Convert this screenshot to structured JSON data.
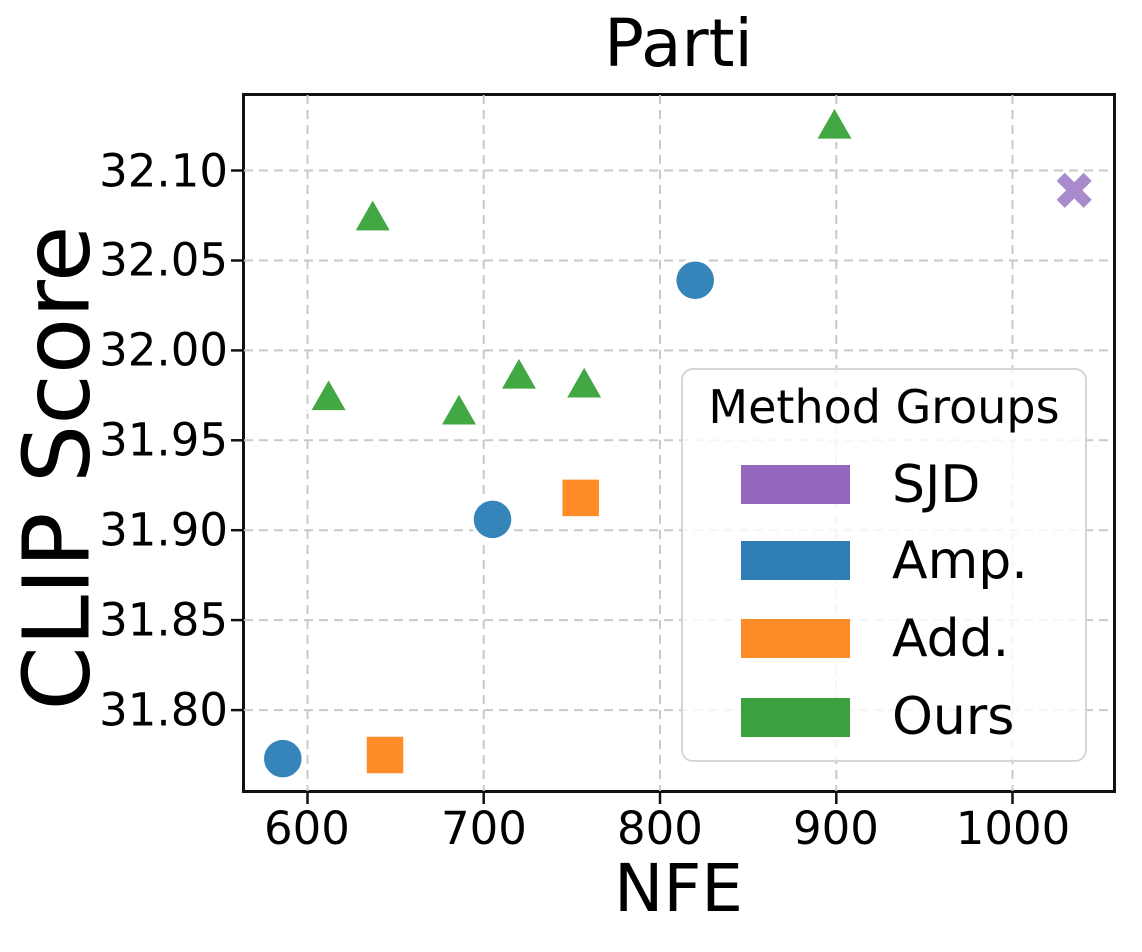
{
  "figure": {
    "title": "Parti",
    "xlabel": "NFE",
    "ylabel": "CLIP Score"
  },
  "legend": {
    "title": "Method Groups",
    "position": "lower right"
  },
  "chart_data": {
    "type": "scatter",
    "title": "Parti",
    "xlabel": "NFE",
    "ylabel": "CLIP Score",
    "xlim": [
      564,
      1057
    ],
    "ylim": [
      31.755,
      32.142
    ],
    "x_ticks": [
      600,
      700,
      800,
      900,
      1000
    ],
    "y_ticks": [
      31.8,
      31.85,
      31.9,
      31.95,
      32.0,
      32.05,
      32.1
    ],
    "grid": true,
    "grid_style": "dashed",
    "grid_color": "#c9c9c9",
    "legend_title": "Method Groups",
    "legend_position": "lower right",
    "series": [
      {
        "name": "SJD",
        "marker": "x",
        "color": "#a98bcd",
        "legend_color": "#9467bd",
        "points": [
          [
            1035,
            32.089
          ]
        ]
      },
      {
        "name": "Amp.",
        "marker": "circle",
        "color": "#3585bb",
        "legend_color": "#2f7db5",
        "points": [
          [
            586,
            31.773
          ],
          [
            705,
            31.906
          ],
          [
            820,
            32.039
          ]
        ]
      },
      {
        "name": "Add.",
        "marker": "square",
        "color": "#ff8c26",
        "legend_color": "#fd8c27",
        "points": [
          [
            644,
            31.775
          ],
          [
            755,
            31.918
          ]
        ]
      },
      {
        "name": "Ours",
        "marker": "triangle",
        "color": "#41a844",
        "legend_color": "#3da03f",
        "points": [
          [
            612,
            31.973
          ],
          [
            637,
            32.073
          ],
          [
            686,
            31.965
          ],
          [
            720,
            31.985
          ],
          [
            757,
            31.98
          ],
          [
            899,
            32.124
          ]
        ]
      }
    ]
  }
}
